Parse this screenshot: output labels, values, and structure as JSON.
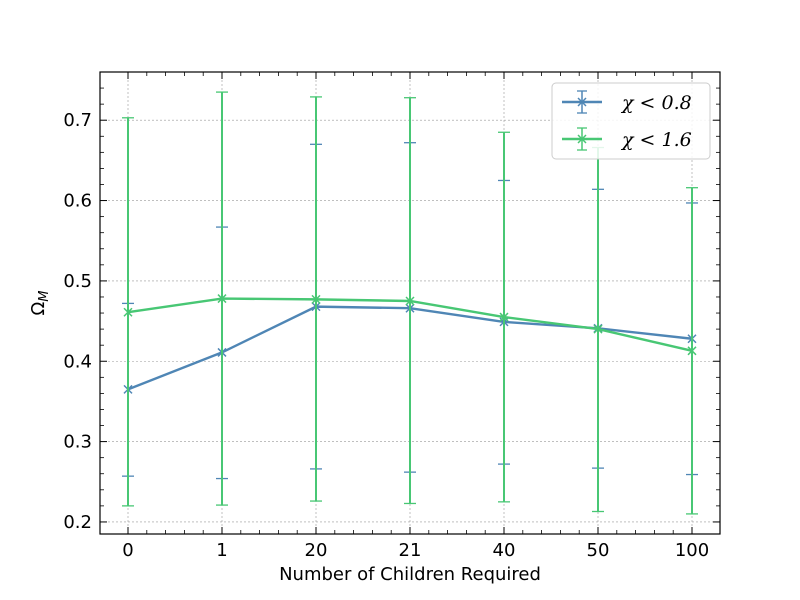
{
  "chart_data": {
    "type": "line",
    "title": "",
    "xlabel": "Number of Children Required",
    "ylabel": "Ω",
    "ylabel_subscript": "M",
    "categories": [
      "0",
      "1",
      "20",
      "21",
      "40",
      "50",
      "100"
    ],
    "ylim": [
      0.185,
      0.76
    ],
    "yticks": [
      0.2,
      0.3,
      0.4,
      0.5,
      0.6,
      0.7
    ],
    "ytick_labels": [
      "0.2",
      "0.3",
      "0.4",
      "0.5",
      "0.6",
      "0.7"
    ],
    "grid": true,
    "legend_position": "top-right",
    "series": [
      {
        "name": "χ < 0.8",
        "color": "#4f86b5",
        "marker": "x",
        "values": [
          0.365,
          0.411,
          0.468,
          0.466,
          0.449,
          0.441,
          0.428
        ],
        "err_low": [
          0.257,
          0.254,
          0.266,
          0.262,
          0.272,
          0.267,
          0.259
        ],
        "err_high": [
          0.472,
          0.567,
          0.67,
          0.672,
          0.625,
          0.614,
          0.597
        ]
      },
      {
        "name": "χ < 1.6",
        "color": "#48c774",
        "marker": "x",
        "values": [
          0.461,
          0.478,
          0.477,
          0.475,
          0.455,
          0.44,
          0.413
        ],
        "err_low": [
          0.22,
          0.221,
          0.226,
          0.223,
          0.225,
          0.213,
          0.21
        ],
        "err_high": [
          0.703,
          0.735,
          0.729,
          0.728,
          0.685,
          0.666,
          0.616
        ]
      }
    ]
  }
}
